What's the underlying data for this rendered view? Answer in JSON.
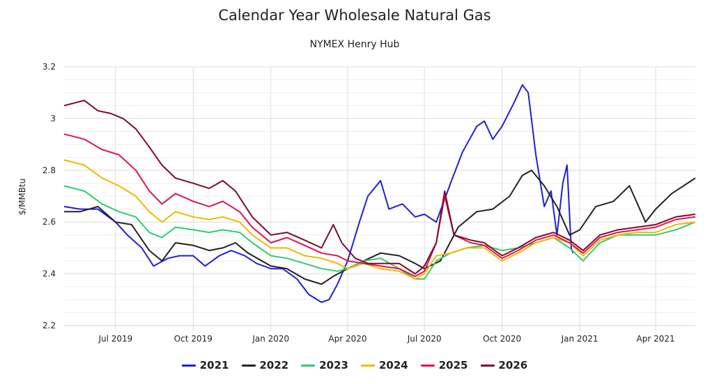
{
  "chart_data": {
    "type": "line",
    "title": "Calendar Year Wholesale Natural Gas",
    "subtitle": "NYMEX Henry Hub",
    "ylabel": "$/MMBtu",
    "xlabel": "",
    "ylim": [
      2.2,
      3.2
    ],
    "yticks": [
      2.2,
      2.4,
      2.6,
      2.8,
      3,
      3.2
    ],
    "ytick_labels": [
      "2.2",
      "2.4",
      "2.6",
      "2.8",
      "3",
      "3.2"
    ],
    "xlim": [
      "2019-05-01",
      "2021-05-18"
    ],
    "xticks": [
      {
        "date": "2019-07-01",
        "label": "Jul 2019"
      },
      {
        "date": "2019-10-01",
        "label": "Oct 2019"
      },
      {
        "date": "2020-01-01",
        "label": "Jan 2020"
      },
      {
        "date": "2020-04-01",
        "label": "Apr 2020"
      },
      {
        "date": "2020-07-01",
        "label": "Jul 2020"
      },
      {
        "date": "2020-10-01",
        "label": "Oct 2020"
      },
      {
        "date": "2021-01-01",
        "label": "Jan 2021"
      },
      {
        "date": "2021-04-01",
        "label": "Apr 2021"
      }
    ],
    "grid": true,
    "legend_position": "bottom",
    "series": [
      {
        "name": "2021",
        "color": "#1f1fd6",
        "points": [
          [
            "2019-05-01",
            2.66
          ],
          [
            "2019-05-20",
            2.65
          ],
          [
            "2019-06-10",
            2.65
          ],
          [
            "2019-07-01",
            2.6
          ],
          [
            "2019-07-15",
            2.55
          ],
          [
            "2019-08-01",
            2.5
          ],
          [
            "2019-08-15",
            2.43
          ],
          [
            "2019-09-01",
            2.46
          ],
          [
            "2019-09-15",
            2.47
          ],
          [
            "2019-10-01",
            2.47
          ],
          [
            "2019-10-15",
            2.43
          ],
          [
            "2019-11-01",
            2.47
          ],
          [
            "2019-11-15",
            2.49
          ],
          [
            "2019-12-01",
            2.47
          ],
          [
            "2019-12-15",
            2.44
          ],
          [
            "2020-01-01",
            2.42
          ],
          [
            "2020-01-15",
            2.42
          ],
          [
            "2020-02-01",
            2.38
          ],
          [
            "2020-02-15",
            2.32
          ],
          [
            "2020-03-01",
            2.29
          ],
          [
            "2020-03-10",
            2.3
          ],
          [
            "2020-03-20",
            2.36
          ],
          [
            "2020-04-01",
            2.45
          ],
          [
            "2020-04-15",
            2.6
          ],
          [
            "2020-04-25",
            2.7
          ],
          [
            "2020-05-10",
            2.76
          ],
          [
            "2020-05-20",
            2.65
          ],
          [
            "2020-06-05",
            2.67
          ],
          [
            "2020-06-20",
            2.62
          ],
          [
            "2020-07-01",
            2.63
          ],
          [
            "2020-07-15",
            2.6
          ],
          [
            "2020-08-01",
            2.75
          ],
          [
            "2020-08-15",
            2.87
          ],
          [
            "2020-09-01",
            2.97
          ],
          [
            "2020-09-10",
            2.99
          ],
          [
            "2020-09-20",
            2.92
          ],
          [
            "2020-10-01",
            2.97
          ],
          [
            "2020-10-15",
            3.06
          ],
          [
            "2020-10-25",
            3.13
          ],
          [
            "2020-11-01",
            3.1
          ],
          [
            "2020-11-10",
            2.86
          ],
          [
            "2020-11-20",
            2.66
          ],
          [
            "2020-11-28",
            2.72
          ],
          [
            "2020-12-05",
            2.55
          ],
          [
            "2020-12-12",
            2.75
          ],
          [
            "2020-12-17",
            2.82
          ],
          [
            "2020-12-22",
            2.5
          ],
          [
            "2020-12-24",
            2.48
          ]
        ]
      },
      {
        "name": "2022",
        "color": "#222222",
        "points": [
          [
            "2019-05-01",
            2.64
          ],
          [
            "2019-05-20",
            2.64
          ],
          [
            "2019-06-10",
            2.66
          ],
          [
            "2019-07-01",
            2.6
          ],
          [
            "2019-07-20",
            2.59
          ],
          [
            "2019-08-10",
            2.49
          ],
          [
            "2019-08-25",
            2.45
          ],
          [
            "2019-09-10",
            2.52
          ],
          [
            "2019-10-01",
            2.51
          ],
          [
            "2019-10-20",
            2.49
          ],
          [
            "2019-11-05",
            2.5
          ],
          [
            "2019-11-20",
            2.52
          ],
          [
            "2019-12-05",
            2.48
          ],
          [
            "2020-01-01",
            2.43
          ],
          [
            "2020-01-20",
            2.42
          ],
          [
            "2020-02-10",
            2.38
          ],
          [
            "2020-03-01",
            2.36
          ],
          [
            "2020-03-15",
            2.39
          ],
          [
            "2020-04-01",
            2.42
          ],
          [
            "2020-04-20",
            2.45
          ],
          [
            "2020-05-10",
            2.48
          ],
          [
            "2020-06-01",
            2.47
          ],
          [
            "2020-06-20",
            2.44
          ],
          [
            "2020-07-01",
            2.42
          ],
          [
            "2020-07-20",
            2.45
          ],
          [
            "2020-08-10",
            2.58
          ],
          [
            "2020-09-01",
            2.64
          ],
          [
            "2020-09-20",
            2.65
          ],
          [
            "2020-10-10",
            2.7
          ],
          [
            "2020-10-25",
            2.78
          ],
          [
            "2020-11-05",
            2.8
          ],
          [
            "2020-11-20",
            2.74
          ],
          [
            "2020-12-05",
            2.66
          ],
          [
            "2020-12-20",
            2.55
          ],
          [
            "2021-01-01",
            2.57
          ],
          [
            "2021-01-20",
            2.66
          ],
          [
            "2021-02-10",
            2.68
          ],
          [
            "2021-03-01",
            2.74
          ],
          [
            "2021-03-20",
            2.6
          ],
          [
            "2021-04-01",
            2.65
          ],
          [
            "2021-04-20",
            2.71
          ],
          [
            "2021-05-18",
            2.77
          ]
        ]
      },
      {
        "name": "2023",
        "color": "#2ecc71",
        "points": [
          [
            "2019-05-01",
            2.74
          ],
          [
            "2019-05-25",
            2.72
          ],
          [
            "2019-06-15",
            2.67
          ],
          [
            "2019-07-05",
            2.64
          ],
          [
            "2019-07-25",
            2.62
          ],
          [
            "2019-08-10",
            2.56
          ],
          [
            "2019-08-25",
            2.54
          ],
          [
            "2019-09-10",
            2.58
          ],
          [
            "2019-10-01",
            2.57
          ],
          [
            "2019-10-20",
            2.56
          ],
          [
            "2019-11-05",
            2.57
          ],
          [
            "2019-11-25",
            2.56
          ],
          [
            "2019-12-10",
            2.52
          ],
          [
            "2020-01-01",
            2.47
          ],
          [
            "2020-01-20",
            2.46
          ],
          [
            "2020-02-10",
            2.44
          ],
          [
            "2020-03-01",
            2.42
          ],
          [
            "2020-03-20",
            2.41
          ],
          [
            "2020-04-01",
            2.42
          ],
          [
            "2020-04-20",
            2.45
          ],
          [
            "2020-05-10",
            2.46
          ],
          [
            "2020-06-01",
            2.42
          ],
          [
            "2020-06-20",
            2.38
          ],
          [
            "2020-07-01",
            2.38
          ],
          [
            "2020-07-15",
            2.45
          ],
          [
            "2020-08-01",
            2.48
          ],
          [
            "2020-08-20",
            2.5
          ],
          [
            "2020-09-10",
            2.51
          ],
          [
            "2020-10-01",
            2.49
          ],
          [
            "2020-10-20",
            2.5
          ],
          [
            "2020-11-10",
            2.52
          ],
          [
            "2020-12-01",
            2.54
          ],
          [
            "2020-12-20",
            2.5
          ],
          [
            "2021-01-05",
            2.45
          ],
          [
            "2021-01-25",
            2.52
          ],
          [
            "2021-02-15",
            2.55
          ],
          [
            "2021-03-10",
            2.55
          ],
          [
            "2021-04-01",
            2.55
          ],
          [
            "2021-04-25",
            2.57
          ],
          [
            "2021-05-18",
            2.6
          ]
        ]
      },
      {
        "name": "2024",
        "color": "#f1b800",
        "points": [
          [
            "2019-05-01",
            2.84
          ],
          [
            "2019-05-25",
            2.82
          ],
          [
            "2019-06-15",
            2.77
          ],
          [
            "2019-07-05",
            2.74
          ],
          [
            "2019-07-25",
            2.7
          ],
          [
            "2019-08-10",
            2.64
          ],
          [
            "2019-08-25",
            2.6
          ],
          [
            "2019-09-10",
            2.64
          ],
          [
            "2019-10-01",
            2.62
          ],
          [
            "2019-10-20",
            2.61
          ],
          [
            "2019-11-05",
            2.62
          ],
          [
            "2019-11-25",
            2.6
          ],
          [
            "2019-12-10",
            2.55
          ],
          [
            "2020-01-01",
            2.5
          ],
          [
            "2020-01-20",
            2.5
          ],
          [
            "2020-02-10",
            2.47
          ],
          [
            "2020-03-01",
            2.46
          ],
          [
            "2020-03-20",
            2.44
          ],
          [
            "2020-04-01",
            2.42
          ],
          [
            "2020-04-20",
            2.44
          ],
          [
            "2020-05-10",
            2.42
          ],
          [
            "2020-06-01",
            2.41
          ],
          [
            "2020-06-20",
            2.38
          ],
          [
            "2020-07-01",
            2.4
          ],
          [
            "2020-07-15",
            2.47
          ],
          [
            "2020-08-01",
            2.48
          ],
          [
            "2020-08-20",
            2.5
          ],
          [
            "2020-09-10",
            2.5
          ],
          [
            "2020-10-01",
            2.45
          ],
          [
            "2020-10-20",
            2.48
          ],
          [
            "2020-11-10",
            2.52
          ],
          [
            "2020-12-01",
            2.54
          ],
          [
            "2020-12-20",
            2.52
          ],
          [
            "2021-01-05",
            2.47
          ],
          [
            "2021-01-25",
            2.53
          ],
          [
            "2021-02-15",
            2.55
          ],
          [
            "2021-03-10",
            2.56
          ],
          [
            "2021-04-01",
            2.56
          ],
          [
            "2021-04-25",
            2.59
          ],
          [
            "2021-05-18",
            2.6
          ]
        ]
      },
      {
        "name": "2025",
        "color": "#e0144c",
        "points": [
          [
            "2019-05-01",
            2.94
          ],
          [
            "2019-05-25",
            2.92
          ],
          [
            "2019-06-15",
            2.88
          ],
          [
            "2019-07-05",
            2.86
          ],
          [
            "2019-07-25",
            2.8
          ],
          [
            "2019-08-10",
            2.72
          ],
          [
            "2019-08-25",
            2.67
          ],
          [
            "2019-09-10",
            2.71
          ],
          [
            "2019-10-01",
            2.68
          ],
          [
            "2019-10-20",
            2.66
          ],
          [
            "2019-11-05",
            2.68
          ],
          [
            "2019-11-25",
            2.64
          ],
          [
            "2019-12-10",
            2.58
          ],
          [
            "2020-01-01",
            2.52
          ],
          [
            "2020-01-20",
            2.54
          ],
          [
            "2020-02-10",
            2.51
          ],
          [
            "2020-03-01",
            2.48
          ],
          [
            "2020-03-20",
            2.47
          ],
          [
            "2020-04-01",
            2.45
          ],
          [
            "2020-04-20",
            2.44
          ],
          [
            "2020-05-10",
            2.43
          ],
          [
            "2020-06-01",
            2.42
          ],
          [
            "2020-06-20",
            2.39
          ],
          [
            "2020-07-01",
            2.41
          ],
          [
            "2020-07-15",
            2.52
          ],
          [
            "2020-07-25",
            2.7
          ],
          [
            "2020-08-05",
            2.55
          ],
          [
            "2020-08-25",
            2.52
          ],
          [
            "2020-09-10",
            2.51
          ],
          [
            "2020-10-01",
            2.46
          ],
          [
            "2020-10-20",
            2.49
          ],
          [
            "2020-11-10",
            2.53
          ],
          [
            "2020-12-01",
            2.55
          ],
          [
            "2020-12-20",
            2.52
          ],
          [
            "2021-01-05",
            2.48
          ],
          [
            "2021-01-25",
            2.54
          ],
          [
            "2021-02-15",
            2.56
          ],
          [
            "2021-03-10",
            2.57
          ],
          [
            "2021-04-01",
            2.58
          ],
          [
            "2021-04-25",
            2.61
          ],
          [
            "2021-05-18",
            2.62
          ]
        ]
      },
      {
        "name": "2026",
        "color": "#7d0a2a",
        "points": [
          [
            "2019-05-01",
            3.05
          ],
          [
            "2019-05-25",
            3.07
          ],
          [
            "2019-06-10",
            3.03
          ],
          [
            "2019-06-25",
            3.02
          ],
          [
            "2019-07-10",
            3.0
          ],
          [
            "2019-07-25",
            2.96
          ],
          [
            "2019-08-10",
            2.89
          ],
          [
            "2019-08-25",
            2.82
          ],
          [
            "2019-09-10",
            2.77
          ],
          [
            "2019-10-01",
            2.75
          ],
          [
            "2019-10-20",
            2.73
          ],
          [
            "2019-11-05",
            2.76
          ],
          [
            "2019-11-20",
            2.72
          ],
          [
            "2019-12-10",
            2.62
          ],
          [
            "2020-01-01",
            2.55
          ],
          [
            "2020-01-20",
            2.56
          ],
          [
            "2020-02-10",
            2.53
          ],
          [
            "2020-03-01",
            2.5
          ],
          [
            "2020-03-15",
            2.59
          ],
          [
            "2020-03-25",
            2.52
          ],
          [
            "2020-04-10",
            2.46
          ],
          [
            "2020-04-25",
            2.44
          ],
          [
            "2020-05-10",
            2.44
          ],
          [
            "2020-06-01",
            2.44
          ],
          [
            "2020-06-20",
            2.4
          ],
          [
            "2020-07-01",
            2.43
          ],
          [
            "2020-07-15",
            2.52
          ],
          [
            "2020-07-25",
            2.72
          ],
          [
            "2020-08-05",
            2.55
          ],
          [
            "2020-08-25",
            2.53
          ],
          [
            "2020-09-10",
            2.52
          ],
          [
            "2020-10-01",
            2.47
          ],
          [
            "2020-10-20",
            2.5
          ],
          [
            "2020-11-10",
            2.54
          ],
          [
            "2020-12-01",
            2.56
          ],
          [
            "2020-12-20",
            2.53
          ],
          [
            "2021-01-05",
            2.49
          ],
          [
            "2021-01-25",
            2.55
          ],
          [
            "2021-02-15",
            2.57
          ],
          [
            "2021-03-10",
            2.58
          ],
          [
            "2021-04-01",
            2.59
          ],
          [
            "2021-04-25",
            2.62
          ],
          [
            "2021-05-18",
            2.63
          ]
        ]
      }
    ]
  }
}
